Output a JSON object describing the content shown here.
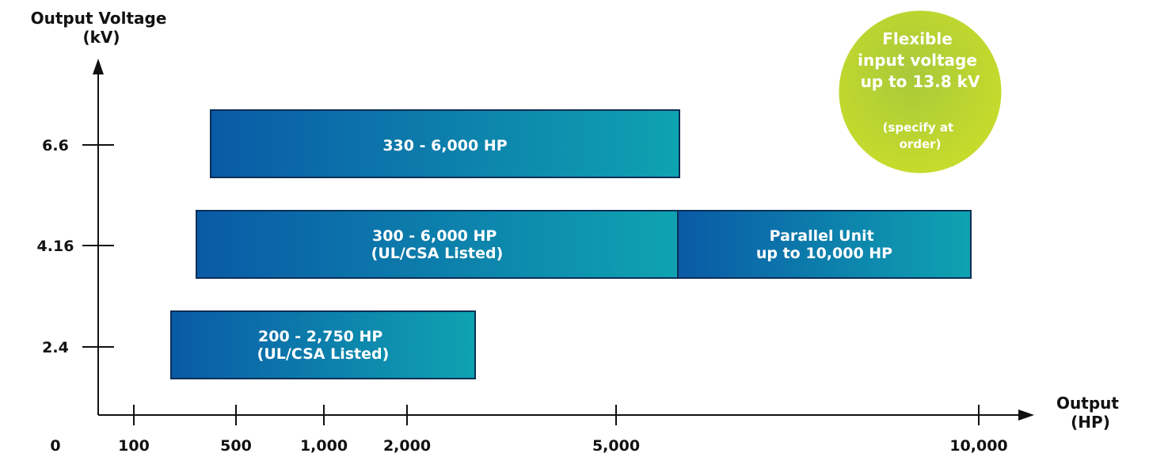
{
  "chart_data": {
    "type": "bar",
    "orientation": "horizontal-range",
    "ylabel": [
      "Output Voltage",
      "(kV)"
    ],
    "xlabel": [
      "Output",
      "(HP)"
    ],
    "y_ticks": [
      "6.6",
      "4.16",
      "2.4"
    ],
    "x_ticks": [
      "0",
      "100",
      "500",
      "1,000",
      "2,000",
      "5,000",
      "10,000"
    ],
    "bars": [
      {
        "voltage": "6.6",
        "start_hp": 330,
        "end_hp": 6000,
        "label": [
          "330 - 6,000 HP"
        ]
      },
      {
        "voltage": "4.16",
        "start_hp": 300,
        "end_hp": 6000,
        "label": [
          "300 - 6,000 HP",
          "(UL/CSA Listed)"
        ]
      },
      {
        "voltage": "4.16",
        "start_hp": 6000,
        "end_hp": 10000,
        "label": [
          "Parallel Unit",
          "up to 10,000 HP"
        ]
      },
      {
        "voltage": "2.4",
        "start_hp": 200,
        "end_hp": 2750,
        "label": [
          "200 - 2,750 HP",
          "(UL/CSA Listed)"
        ]
      }
    ],
    "badge": {
      "title": [
        "Flexible",
        "input voltage",
        "up to 13.8 kV"
      ],
      "note": [
        "(specify at",
        "order)"
      ]
    },
    "colors": {
      "bar_start": "#0a5aa6",
      "bar_end": "#0fa3b1",
      "bar_border": "#0b2f55",
      "badge_light": "#c8dc3a",
      "badge_dark": "#8fb82d",
      "axis": "#111111"
    }
  }
}
